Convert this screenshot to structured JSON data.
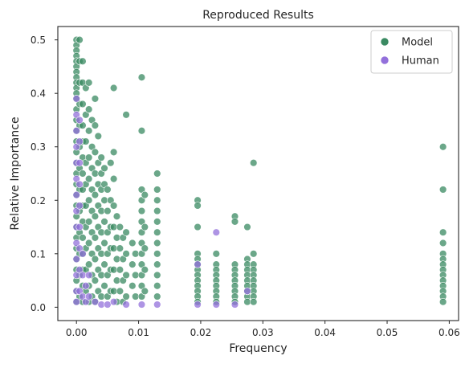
{
  "chart_data": {
    "type": "scatter",
    "title": "Reproduced Results",
    "xlabel": "Frequency",
    "ylabel": "Relative Importance",
    "xlim": [
      -0.003,
      0.0615
    ],
    "ylim": [
      -0.025,
      0.525
    ],
    "xticks": [
      0.0,
      0.01,
      0.02,
      0.03,
      0.04,
      0.05,
      0.06
    ],
    "xtick_labels": [
      "0.00",
      "0.01",
      "0.02",
      "0.03",
      "0.04",
      "0.05",
      "0.06"
    ],
    "yticks": [
      0.0,
      0.1,
      0.2,
      0.3,
      0.4,
      0.5
    ],
    "ytick_labels": [
      "0.0",
      "0.1",
      "0.2",
      "0.3",
      "0.4",
      "0.5"
    ],
    "grid": false,
    "legend_position": "top-right",
    "series": [
      {
        "name": "Model",
        "color": "#3a8a62",
        "points": [
          [
            0.0,
            0.5
          ],
          [
            0.0,
            0.49
          ],
          [
            0.0,
            0.48
          ],
          [
            0.0,
            0.47
          ],
          [
            0.0,
            0.46
          ],
          [
            0.0,
            0.45
          ],
          [
            0.0,
            0.44
          ],
          [
            0.0,
            0.43
          ],
          [
            0.0,
            0.42
          ],
          [
            0.0,
            0.41
          ],
          [
            0.0,
            0.4
          ],
          [
            0.0,
            0.39
          ],
          [
            0.0,
            0.37
          ],
          [
            0.0,
            0.35
          ],
          [
            0.0,
            0.33
          ],
          [
            0.0,
            0.31
          ],
          [
            0.0,
            0.29
          ],
          [
            0.0,
            0.27
          ],
          [
            0.0,
            0.25
          ],
          [
            0.0,
            0.23
          ],
          [
            0.0,
            0.21
          ],
          [
            0.0,
            0.19
          ],
          [
            0.0,
            0.17
          ],
          [
            0.0,
            0.15
          ],
          [
            0.0,
            0.13
          ],
          [
            0.0,
            0.11
          ],
          [
            0.0,
            0.09
          ],
          [
            0.0,
            0.07
          ],
          [
            0.0,
            0.05
          ],
          [
            0.0,
            0.03
          ],
          [
            0.0,
            0.01
          ],
          [
            0.0005,
            0.5
          ],
          [
            0.0005,
            0.46
          ],
          [
            0.0005,
            0.42
          ],
          [
            0.0005,
            0.38
          ],
          [
            0.0005,
            0.34
          ],
          [
            0.0005,
            0.3
          ],
          [
            0.0005,
            0.26
          ],
          [
            0.0005,
            0.22
          ],
          [
            0.0005,
            0.18
          ],
          [
            0.0005,
            0.14
          ],
          [
            0.0005,
            0.1
          ],
          [
            0.0005,
            0.06
          ],
          [
            0.0005,
            0.02
          ],
          [
            0.001,
            0.46
          ],
          [
            0.001,
            0.42
          ],
          [
            0.001,
            0.38
          ],
          [
            0.001,
            0.34
          ],
          [
            0.001,
            0.31
          ],
          [
            0.001,
            0.28
          ],
          [
            0.001,
            0.25
          ],
          [
            0.001,
            0.22
          ],
          [
            0.001,
            0.19
          ],
          [
            0.001,
            0.16
          ],
          [
            0.001,
            0.13
          ],
          [
            0.001,
            0.1
          ],
          [
            0.001,
            0.07
          ],
          [
            0.001,
            0.04
          ],
          [
            0.001,
            0.01
          ],
          [
            0.0015,
            0.41
          ],
          [
            0.0015,
            0.36
          ],
          [
            0.0015,
            0.31
          ],
          [
            0.0015,
            0.27
          ],
          [
            0.0015,
            0.23
          ],
          [
            0.0015,
            0.19
          ],
          [
            0.0015,
            0.15
          ],
          [
            0.0015,
            0.11
          ],
          [
            0.0015,
            0.07
          ],
          [
            0.0015,
            0.03
          ],
          [
            0.002,
            0.42
          ],
          [
            0.002,
            0.37
          ],
          [
            0.002,
            0.33
          ],
          [
            0.002,
            0.28
          ],
          [
            0.002,
            0.24
          ],
          [
            0.002,
            0.2
          ],
          [
            0.002,
            0.16
          ],
          [
            0.002,
            0.12
          ],
          [
            0.002,
            0.08
          ],
          [
            0.002,
            0.04
          ],
          [
            0.002,
            0.01
          ],
          [
            0.0025,
            0.35
          ],
          [
            0.0025,
            0.3
          ],
          [
            0.0025,
            0.26
          ],
          [
            0.0025,
            0.22
          ],
          [
            0.0025,
            0.18
          ],
          [
            0.0025,
            0.14
          ],
          [
            0.0025,
            0.1
          ],
          [
            0.0025,
            0.06
          ],
          [
            0.0025,
            0.02
          ],
          [
            0.003,
            0.39
          ],
          [
            0.003,
            0.34
          ],
          [
            0.003,
            0.29
          ],
          [
            0.003,
            0.25
          ],
          [
            0.003,
            0.21
          ],
          [
            0.003,
            0.17
          ],
          [
            0.003,
            0.13
          ],
          [
            0.003,
            0.09
          ],
          [
            0.003,
            0.05
          ],
          [
            0.003,
            0.01
          ],
          [
            0.0035,
            0.32
          ],
          [
            0.0035,
            0.27
          ],
          [
            0.0035,
            0.23
          ],
          [
            0.0035,
            0.19
          ],
          [
            0.0035,
            0.15
          ],
          [
            0.0035,
            0.11
          ],
          [
            0.0035,
            0.07
          ],
          [
            0.0035,
            0.03
          ],
          [
            0.004,
            0.28
          ],
          [
            0.004,
            0.25
          ],
          [
            0.004,
            0.22
          ],
          [
            0.004,
            0.18
          ],
          [
            0.004,
            0.14
          ],
          [
            0.004,
            0.1
          ],
          [
            0.004,
            0.06
          ],
          [
            0.004,
            0.02
          ],
          [
            0.0045,
            0.26
          ],
          [
            0.0045,
            0.23
          ],
          [
            0.0045,
            0.2
          ],
          [
            0.0045,
            0.16
          ],
          [
            0.0045,
            0.12
          ],
          [
            0.0045,
            0.08
          ],
          [
            0.0045,
            0.04
          ],
          [
            0.005,
            0.22
          ],
          [
            0.005,
            0.18
          ],
          [
            0.005,
            0.14
          ],
          [
            0.005,
            0.1
          ],
          [
            0.005,
            0.06
          ],
          [
            0.005,
            0.02
          ],
          [
            0.0055,
            0.27
          ],
          [
            0.0055,
            0.2
          ],
          [
            0.0055,
            0.15
          ],
          [
            0.0055,
            0.11
          ],
          [
            0.0055,
            0.07
          ],
          [
            0.0055,
            0.03
          ],
          [
            0.006,
            0.41
          ],
          [
            0.006,
            0.29
          ],
          [
            0.006,
            0.24
          ],
          [
            0.006,
            0.19
          ],
          [
            0.006,
            0.15
          ],
          [
            0.006,
            0.11
          ],
          [
            0.006,
            0.07
          ],
          [
            0.006,
            0.03
          ],
          [
            0.0065,
            0.17
          ],
          [
            0.0065,
            0.13
          ],
          [
            0.0065,
            0.09
          ],
          [
            0.0065,
            0.05
          ],
          [
            0.0065,
            0.01
          ],
          [
            0.007,
            0.15
          ],
          [
            0.007,
            0.11
          ],
          [
            0.007,
            0.07
          ],
          [
            0.007,
            0.03
          ],
          [
            0.0075,
            0.13
          ],
          [
            0.0075,
            0.09
          ],
          [
            0.0075,
            0.05
          ],
          [
            0.0075,
            0.01
          ],
          [
            0.008,
            0.36
          ],
          [
            0.008,
            0.14
          ],
          [
            0.008,
            0.1
          ],
          [
            0.008,
            0.06
          ],
          [
            0.008,
            0.02
          ],
          [
            0.009,
            0.12
          ],
          [
            0.009,
            0.08
          ],
          [
            0.009,
            0.04
          ],
          [
            0.0095,
            0.1
          ],
          [
            0.0095,
            0.06
          ],
          [
            0.0095,
            0.02
          ],
          [
            0.0105,
            0.43
          ],
          [
            0.0105,
            0.33
          ],
          [
            0.0105,
            0.22
          ],
          [
            0.0105,
            0.2
          ],
          [
            0.0105,
            0.18
          ],
          [
            0.0105,
            0.16
          ],
          [
            0.0105,
            0.14
          ],
          [
            0.0105,
            0.12
          ],
          [
            0.0105,
            0.1
          ],
          [
            0.0105,
            0.08
          ],
          [
            0.0105,
            0.06
          ],
          [
            0.0105,
            0.04
          ],
          [
            0.0105,
            0.02
          ],
          [
            0.011,
            0.21
          ],
          [
            0.011,
            0.15
          ],
          [
            0.011,
            0.11
          ],
          [
            0.011,
            0.07
          ],
          [
            0.011,
            0.03
          ],
          [
            0.013,
            0.25
          ],
          [
            0.013,
            0.22
          ],
          [
            0.013,
            0.2
          ],
          [
            0.013,
            0.18
          ],
          [
            0.013,
            0.16
          ],
          [
            0.013,
            0.14
          ],
          [
            0.013,
            0.12
          ],
          [
            0.013,
            0.1
          ],
          [
            0.013,
            0.08
          ],
          [
            0.013,
            0.06
          ],
          [
            0.013,
            0.04
          ],
          [
            0.013,
            0.02
          ],
          [
            0.0195,
            0.2
          ],
          [
            0.0195,
            0.19
          ],
          [
            0.0195,
            0.15
          ],
          [
            0.0195,
            0.1
          ],
          [
            0.0195,
            0.09
          ],
          [
            0.0195,
            0.08
          ],
          [
            0.0195,
            0.07
          ],
          [
            0.0195,
            0.06
          ],
          [
            0.0195,
            0.05
          ],
          [
            0.0195,
            0.04
          ],
          [
            0.0195,
            0.03
          ],
          [
            0.0195,
            0.02
          ],
          [
            0.0195,
            0.01
          ],
          [
            0.0225,
            0.1
          ],
          [
            0.0225,
            0.08
          ],
          [
            0.0225,
            0.07
          ],
          [
            0.0225,
            0.06
          ],
          [
            0.0225,
            0.05
          ],
          [
            0.0225,
            0.04
          ],
          [
            0.0225,
            0.03
          ],
          [
            0.0225,
            0.02
          ],
          [
            0.0225,
            0.01
          ],
          [
            0.0255,
            0.17
          ],
          [
            0.0255,
            0.16
          ],
          [
            0.0255,
            0.08
          ],
          [
            0.0255,
            0.07
          ],
          [
            0.0255,
            0.06
          ],
          [
            0.0255,
            0.05
          ],
          [
            0.0255,
            0.04
          ],
          [
            0.0255,
            0.03
          ],
          [
            0.0255,
            0.02
          ],
          [
            0.0255,
            0.01
          ],
          [
            0.0275,
            0.15
          ],
          [
            0.0275,
            0.09
          ],
          [
            0.0275,
            0.08
          ],
          [
            0.0275,
            0.07
          ],
          [
            0.0275,
            0.06
          ],
          [
            0.0275,
            0.05
          ],
          [
            0.0275,
            0.04
          ],
          [
            0.0275,
            0.03
          ],
          [
            0.0275,
            0.02
          ],
          [
            0.0275,
            0.01
          ],
          [
            0.0285,
            0.27
          ],
          [
            0.0285,
            0.1
          ],
          [
            0.0285,
            0.08
          ],
          [
            0.0285,
            0.07
          ],
          [
            0.0285,
            0.06
          ],
          [
            0.0285,
            0.05
          ],
          [
            0.0285,
            0.04
          ],
          [
            0.0285,
            0.03
          ],
          [
            0.0285,
            0.02
          ],
          [
            0.0285,
            0.01
          ],
          [
            0.059,
            0.3
          ],
          [
            0.059,
            0.22
          ],
          [
            0.059,
            0.14
          ],
          [
            0.059,
            0.12
          ],
          [
            0.059,
            0.1
          ],
          [
            0.059,
            0.09
          ],
          [
            0.059,
            0.08
          ],
          [
            0.059,
            0.07
          ],
          [
            0.059,
            0.06
          ],
          [
            0.059,
            0.05
          ],
          [
            0.059,
            0.04
          ],
          [
            0.059,
            0.03
          ],
          [
            0.059,
            0.02
          ],
          [
            0.059,
            0.01
          ]
        ]
      },
      {
        "name": "Human",
        "color": "#9370db",
        "points": [
          [
            0.0,
            0.39
          ],
          [
            0.0,
            0.36
          ],
          [
            0.0,
            0.33
          ],
          [
            0.0,
            0.3
          ],
          [
            0.0,
            0.27
          ],
          [
            0.0,
            0.24
          ],
          [
            0.0,
            0.21
          ],
          [
            0.0,
            0.18
          ],
          [
            0.0,
            0.15
          ],
          [
            0.0,
            0.12
          ],
          [
            0.0,
            0.09
          ],
          [
            0.0,
            0.06
          ],
          [
            0.0,
            0.03
          ],
          [
            0.0,
            0.01
          ],
          [
            0.0005,
            0.35
          ],
          [
            0.0005,
            0.31
          ],
          [
            0.0005,
            0.27
          ],
          [
            0.0005,
            0.23
          ],
          [
            0.0005,
            0.19
          ],
          [
            0.0005,
            0.15
          ],
          [
            0.0005,
            0.11
          ],
          [
            0.0005,
            0.07
          ],
          [
            0.0005,
            0.03
          ],
          [
            0.001,
            0.1
          ],
          [
            0.001,
            0.06
          ],
          [
            0.001,
            0.02
          ],
          [
            0.0015,
            0.04
          ],
          [
            0.0015,
            0.01
          ],
          [
            0.002,
            0.06
          ],
          [
            0.002,
            0.02
          ],
          [
            0.003,
            0.01
          ],
          [
            0.004,
            0.005
          ],
          [
            0.005,
            0.005
          ],
          [
            0.006,
            0.01
          ],
          [
            0.008,
            0.005
          ],
          [
            0.0105,
            0.005
          ],
          [
            0.013,
            0.005
          ],
          [
            0.0195,
            0.08
          ],
          [
            0.0195,
            0.005
          ],
          [
            0.0225,
            0.14
          ],
          [
            0.0225,
            0.005
          ],
          [
            0.0255,
            0.005
          ],
          [
            0.0275,
            0.03
          ]
        ]
      }
    ]
  }
}
